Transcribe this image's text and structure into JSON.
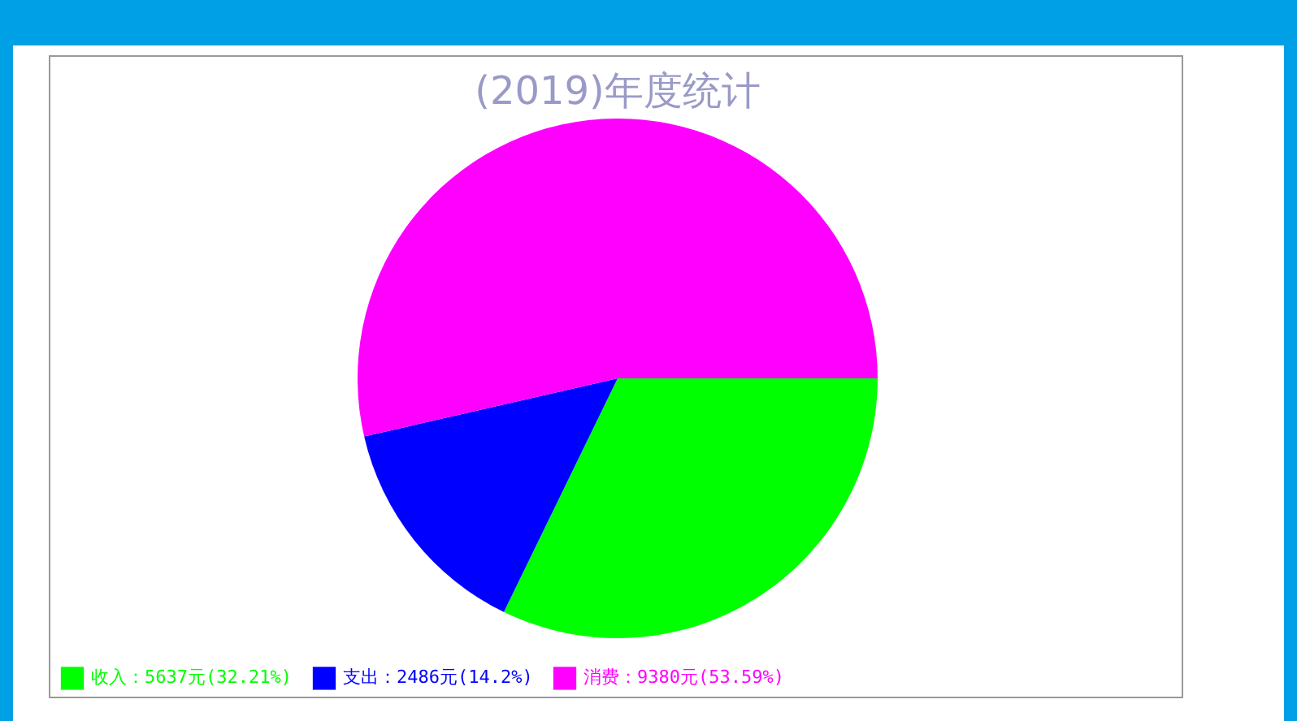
{
  "chart_data": {
    "type": "pie",
    "title": "(2019)年度统计",
    "categories": [
      "收入：5637元(32.21%)",
      "支出：2486元(14.2%)",
      "消费：9380元(53.59%)"
    ],
    "values": [
      5637,
      2486,
      9380
    ],
    "colors": [
      "#00ff00",
      "#0000ff",
      "#ff00ff"
    ],
    "legend": "bottom left"
  }
}
